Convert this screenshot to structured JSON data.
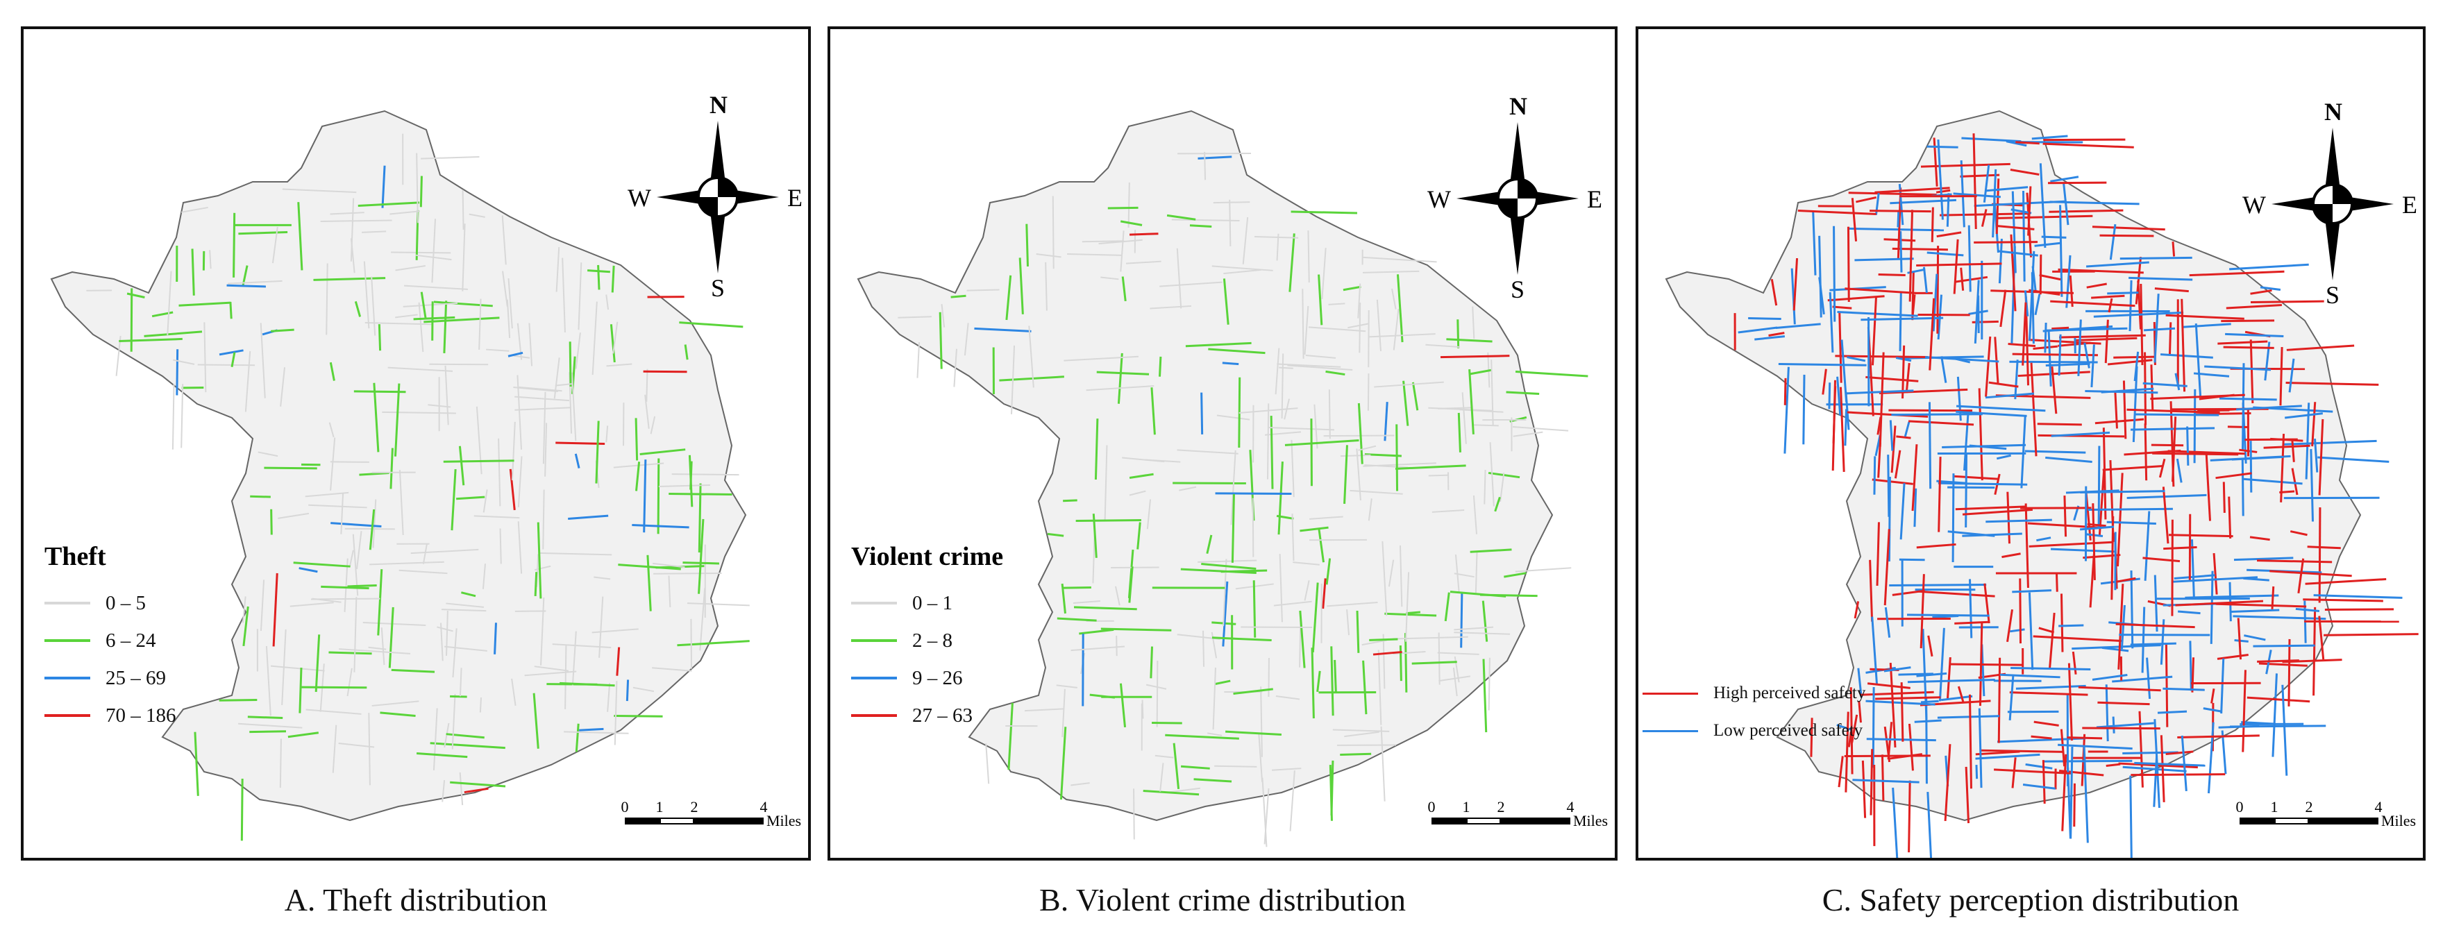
{
  "panels": [
    {
      "id": "theft",
      "caption": "A. Theft distribution",
      "legend": {
        "title": "Theft",
        "items": [
          {
            "label": "0 – 5",
            "color": "#d8d8d8"
          },
          {
            "label": "6 – 24",
            "color": "#5ad43a"
          },
          {
            "label": "25 – 69",
            "color": "#2d86e3"
          },
          {
            "label": "70 – 186",
            "color": "#e02020"
          }
        ]
      },
      "compass": {
        "n": "N",
        "s": "S",
        "e": "E",
        "w": "W"
      },
      "scale": {
        "ticks": [
          "0",
          "1",
          "2",
          "4"
        ],
        "units": "Miles"
      }
    },
    {
      "id": "violent",
      "caption": "B. Violent crime distribution",
      "legend": {
        "title": "Violent crime",
        "items": [
          {
            "label": "0 – 1",
            "color": "#d8d8d8"
          },
          {
            "label": "2 – 8",
            "color": "#5ad43a"
          },
          {
            "label": "9 – 26",
            "color": "#2d86e3"
          },
          {
            "label": "27 – 63",
            "color": "#e02020"
          }
        ]
      },
      "compass": {
        "n": "N",
        "s": "S",
        "e": "E",
        "w": "W"
      },
      "scale": {
        "ticks": [
          "0",
          "1",
          "2",
          "4"
        ],
        "units": "Miles"
      }
    },
    {
      "id": "safety",
      "caption": "C. Safety perception distribution",
      "legend": {
        "title": "",
        "items": [
          {
            "label": "High perceived safety",
            "color": "#e02020"
          },
          {
            "label": "Low perceived safety",
            "color": "#2d86e3"
          }
        ]
      },
      "compass": {
        "n": "N",
        "s": "S",
        "e": "E",
        "w": "W"
      },
      "scale": {
        "ticks": [
          "0",
          "1",
          "2",
          "4"
        ],
        "units": "Miles"
      }
    }
  ]
}
